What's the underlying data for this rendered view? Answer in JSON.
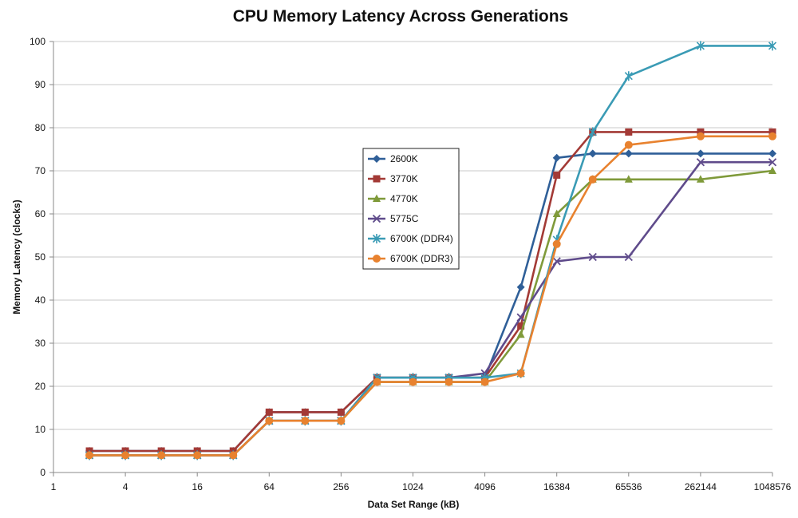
{
  "chart_data": {
    "type": "line",
    "title": "CPU Memory Latency Across Generations",
    "xlabel": "Data Set Range (kB)",
    "ylabel": "Memory Latency (clocks)",
    "x_scale": "log2",
    "x_tick_labels": [
      "1",
      "4",
      "16",
      "64",
      "256",
      "1024",
      "4096",
      "16384",
      "65536",
      "262144",
      "1048576"
    ],
    "xlim": [
      1,
      1048576
    ],
    "ylim": [
      0,
      100
    ],
    "y_ticks": [
      0,
      10,
      20,
      30,
      40,
      50,
      60,
      70,
      80,
      90,
      100
    ],
    "grid": "horizontal",
    "legend_position": "center",
    "x": [
      2,
      4,
      8,
      16,
      32,
      64,
      128,
      256,
      512,
      1024,
      2048,
      4096,
      8192,
      16384,
      32768,
      65536,
      262144,
      1048576
    ],
    "series": [
      {
        "name": "2600K",
        "color": "#2F5F98",
        "marker": "diamond",
        "values": [
          5,
          5,
          5,
          5,
          5,
          14,
          14,
          14,
          22,
          22,
          22,
          22,
          43,
          73,
          74,
          74,
          74,
          74
        ]
      },
      {
        "name": "3770K",
        "color": "#A33A36",
        "marker": "square",
        "values": [
          5,
          5,
          5,
          5,
          5,
          14,
          14,
          14,
          22,
          22,
          22,
          22,
          34,
          69,
          79,
          79,
          79,
          79
        ]
      },
      {
        "name": "4770K",
        "color": "#7F9A3A",
        "marker": "triangle",
        "values": [
          4,
          4,
          4,
          4,
          4,
          12,
          12,
          12,
          21,
          21,
          21,
          21,
          32,
          60,
          68,
          68,
          68,
          70
        ]
      },
      {
        "name": "5775C",
        "color": "#5F4B8B",
        "marker": "x",
        "values": [
          4,
          4,
          4,
          4,
          4,
          12,
          12,
          12,
          22,
          22,
          22,
          23,
          36,
          49,
          50,
          50,
          72,
          72
        ]
      },
      {
        "name": "6700K (DDR4)",
        "color": "#3A9BB5",
        "marker": "star",
        "values": [
          4,
          4,
          4,
          4,
          4,
          12,
          12,
          12,
          22,
          22,
          22,
          22,
          23,
          54,
          79,
          92,
          99,
          99
        ]
      },
      {
        "name": "6700K (DDR3)",
        "color": "#E8822F",
        "marker": "circle",
        "values": [
          4,
          4,
          4,
          4,
          4,
          12,
          12,
          12,
          21,
          21,
          21,
          21,
          23,
          53,
          68,
          76,
          78,
          78
        ]
      }
    ]
  }
}
